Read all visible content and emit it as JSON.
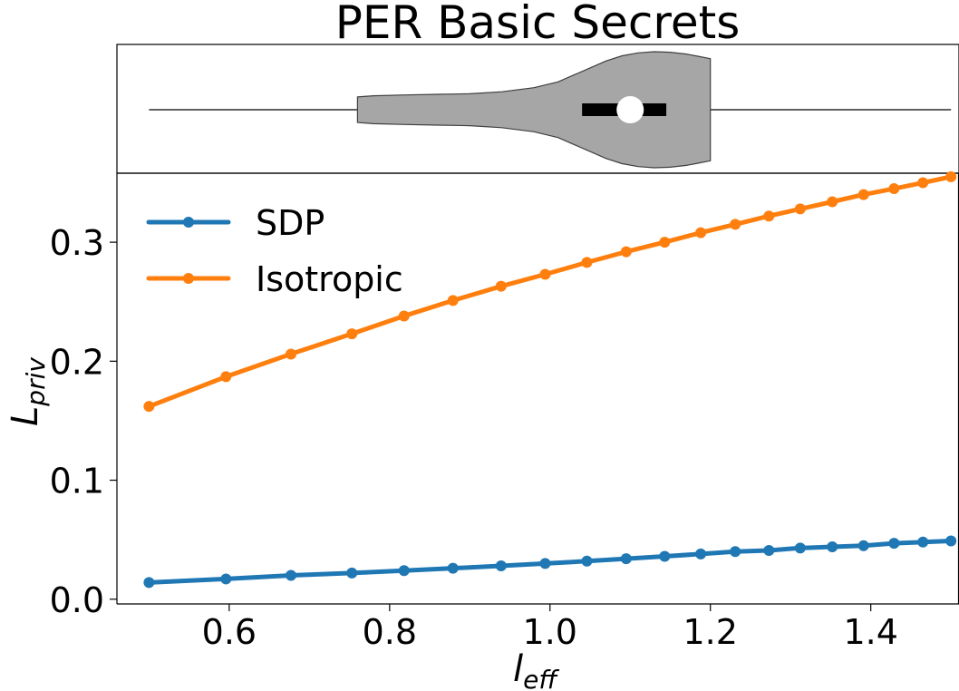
{
  "chart_data": {
    "type": "line",
    "title": "PER Basic Secrets",
    "xlabel": {
      "main": "l",
      "sub": "eff"
    },
    "ylabel": {
      "main": "L",
      "sub": "priv"
    },
    "xlim": [
      0.46,
      1.51
    ],
    "ylim": [
      -0.004,
      0.358
    ],
    "xticks": [
      0.6,
      0.8,
      1.0,
      1.2,
      1.4
    ],
    "xtick_labels": [
      "0.6",
      "0.8",
      "1.0",
      "1.2",
      "1.4"
    ],
    "yticks": [
      0.0,
      0.1,
      0.2,
      0.3
    ],
    "ytick_labels": [
      "0.0",
      "0.1",
      "0.2",
      "0.3"
    ],
    "grid": false,
    "legend": "upper left",
    "x": [
      0.5,
      0.596,
      0.677,
      0.753,
      0.818,
      0.879,
      0.939,
      0.994,
      1.046,
      1.095,
      1.143,
      1.188,
      1.231,
      1.273,
      1.312,
      1.352,
      1.391,
      1.429,
      1.465,
      1.5
    ],
    "series": [
      {
        "name": "SDP",
        "color": "#1f77b4",
        "values": [
          0.014,
          0.017,
          0.02,
          0.022,
          0.024,
          0.026,
          0.028,
          0.03,
          0.032,
          0.034,
          0.036,
          0.038,
          0.04,
          0.041,
          0.043,
          0.044,
          0.045,
          0.047,
          0.048,
          0.049
        ]
      },
      {
        "name": "Isotropic",
        "color": "#ff7f0e",
        "values": [
          0.162,
          0.187,
          0.206,
          0.223,
          0.238,
          0.251,
          0.263,
          0.273,
          0.283,
          0.292,
          0.3,
          0.308,
          0.315,
          0.322,
          0.328,
          0.334,
          0.34,
          0.345,
          0.35,
          0.355
        ]
      }
    ],
    "violin": {
      "variable": "l_eff",
      "min": 0.5,
      "max": 1.5,
      "extent_min": 0.76,
      "extent_max": 1.2,
      "median": 1.1,
      "q1": 1.04,
      "q3": 1.145,
      "fill": "#a6a6a6",
      "profile": [
        [
          0.76,
          0.22
        ],
        [
          0.78,
          0.24
        ],
        [
          0.82,
          0.255
        ],
        [
          0.86,
          0.265
        ],
        [
          0.9,
          0.275
        ],
        [
          0.94,
          0.31
        ],
        [
          0.98,
          0.38
        ],
        [
          1.01,
          0.48
        ],
        [
          1.03,
          0.6
        ],
        [
          1.05,
          0.72
        ],
        [
          1.07,
          0.84
        ],
        [
          1.09,
          0.93
        ],
        [
          1.11,
          0.98
        ],
        [
          1.13,
          1.0
        ],
        [
          1.15,
          0.99
        ],
        [
          1.17,
          0.96
        ],
        [
          1.185,
          0.92
        ],
        [
          1.2,
          0.88
        ]
      ]
    }
  }
}
